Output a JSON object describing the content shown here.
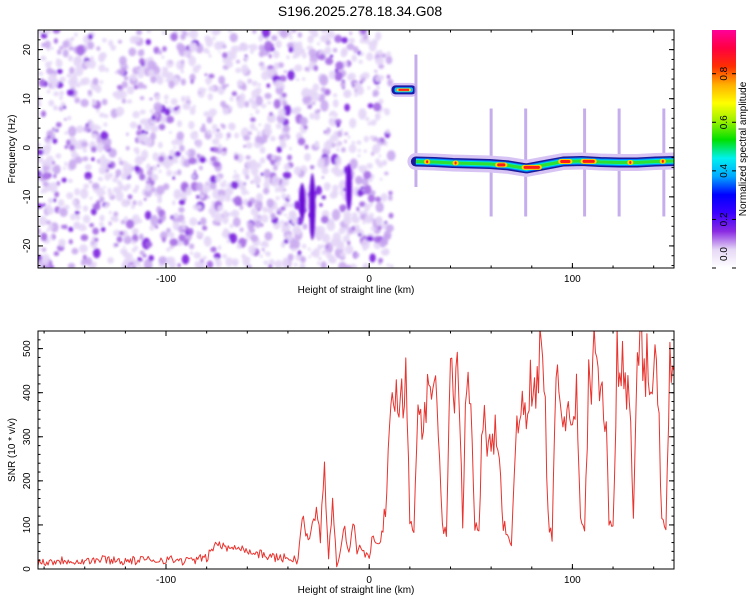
{
  "title": "S196.2025.278.18.34.G08",
  "chart_data": [
    {
      "type": "heatmap",
      "name": "spectrogram",
      "xlabel": "Height of straight line (km)",
      "ylabel": "Frequency (Hz)",
      "xlim": [
        -163,
        150
      ],
      "ylim": [
        -24.5,
        24
      ],
      "xticks": [
        -100,
        0,
        100
      ],
      "yticks": [
        -20,
        -10,
        0,
        10,
        20
      ],
      "noise_region_x": [
        -163,
        11
      ],
      "upper_line": {
        "x": [
          11,
          23
        ],
        "y": 11.8
      },
      "main_line": {
        "x": [
          23,
          150
        ],
        "y": [
          -2.8,
          -2.9,
          -3.1,
          -3.2,
          -3.3,
          -3.6,
          -4.2,
          -3.5,
          -2.8,
          -2.7,
          -2.9,
          -3.0,
          -3.0,
          -2.8,
          -2.7
        ],
        "hot_spots_x": [
          27,
          30,
          41,
          44,
          62,
          68,
          75,
          85,
          93,
          100,
          104,
          112,
          127,
          130,
          143,
          146
        ]
      },
      "spike_x": [
        60,
        77,
        106,
        123,
        145
      ]
    },
    {
      "type": "colorbar",
      "label": "Normalized spectral amplitude",
      "ticks": [
        "0.0",
        "0.2",
        "0.4",
        "0.6",
        "0.8"
      ],
      "tick_values": [
        0.0,
        0.2,
        0.4,
        0.6,
        0.8
      ],
      "range": [
        0,
        0.98
      ],
      "colors": [
        "#ffffff",
        "#e6d8f6",
        "#8a2be2",
        "#3a00ff",
        "#0000ff",
        "#00a8ff",
        "#00f0f0",
        "#00e000",
        "#9af000",
        "#ffff00",
        "#ffb000",
        "#ff3000",
        "#ff0040",
        "#ff0099"
      ]
    },
    {
      "type": "line",
      "name": "snr",
      "xlabel": "Height of straight line (km)",
      "ylabel": "SNR (10 * v/v)",
      "xlim": [
        -163,
        150
      ],
      "ylim": [
        0,
        540
      ],
      "xticks": [
        -100,
        0,
        100
      ],
      "yticks": [
        0,
        100,
        200,
        300,
        400,
        500
      ],
      "color": "#e8332e",
      "series": [
        {
          "name": "SNR",
          "x": [
            -163,
            -150,
            -140,
            -130,
            -120,
            -110,
            -100,
            -90,
            -80,
            -75,
            -70,
            -65,
            -60,
            -55,
            -50,
            -45,
            -40,
            -35,
            -33,
            -30,
            -26,
            -24,
            -22,
            -20,
            -18,
            -16,
            -14,
            -12,
            -10,
            -8,
            -6,
            -4,
            -2,
            0,
            2,
            5,
            8,
            10,
            12,
            14,
            16,
            18,
            20,
            22,
            24,
            26,
            28,
            30,
            32,
            34,
            36,
            38,
            40,
            42,
            44,
            46,
            48,
            50,
            52,
            54,
            56,
            58,
            60,
            62,
            64,
            66,
            68,
            70,
            72,
            74,
            76,
            78,
            80,
            82,
            84,
            86,
            88,
            90,
            92,
            94,
            96,
            98,
            100,
            102,
            104,
            106,
            108,
            110,
            112,
            114,
            116,
            118,
            120,
            122,
            124,
            126,
            128,
            130,
            132,
            134,
            136,
            138,
            140,
            142,
            144,
            146,
            148,
            150
          ],
          "y": [
            15,
            20,
            18,
            22,
            18,
            20,
            22,
            18,
            25,
            60,
            45,
            55,
            40,
            35,
            30,
            25,
            25,
            20,
            120,
            60,
            130,
            70,
            240,
            30,
            140,
            15,
            45,
            100,
            30,
            110,
            40,
            55,
            30,
            25,
            80,
            60,
            130,
            290,
            380,
            420,
            400,
            430,
            120,
            85,
            380,
            340,
            400,
            460,
            390,
            360,
            90,
            80,
            430,
            420,
            480,
            85,
            470,
            420,
            100,
            75,
            350,
            300,
            260,
            330,
            240,
            100,
            80,
            60,
            280,
            340,
            360,
            390,
            410,
            440,
            480,
            460,
            120,
            60,
            420,
            400,
            340,
            360,
            300,
            380,
            100,
            80,
            440,
            460,
            480,
            420,
            380,
            110,
            90,
            520,
            460,
            420,
            380,
            110,
            480,
            500,
            470,
            440,
            460,
            430,
            120,
            100,
            460,
            450
          ]
        }
      ]
    }
  ]
}
